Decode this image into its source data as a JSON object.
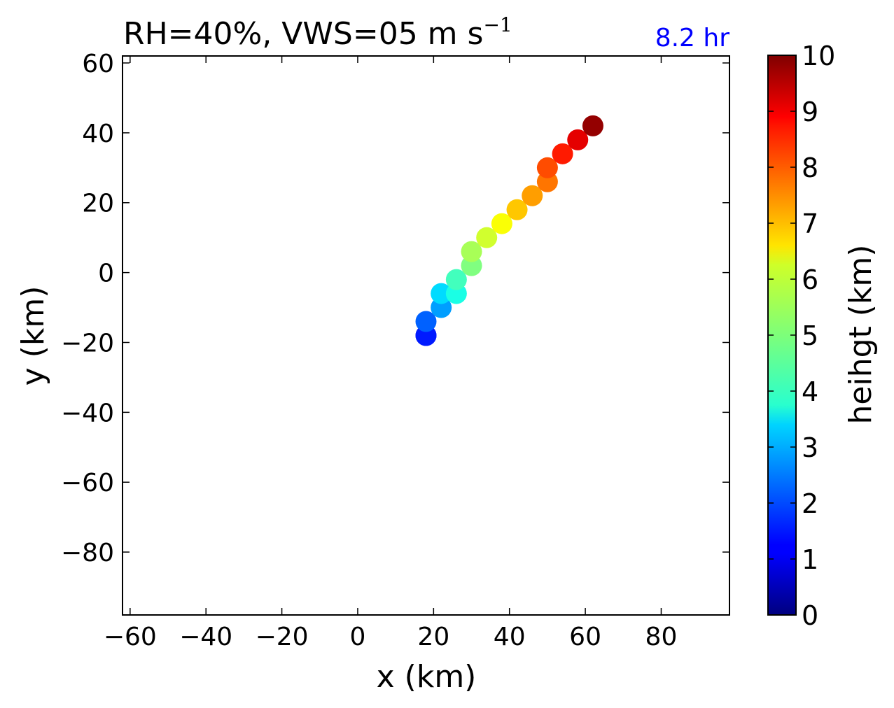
{
  "chart_data": {
    "type": "scatter",
    "title_main": "RH=40%, VWS=05 m s",
    "title_sup": "−1",
    "time_label": "8.2 hr",
    "xlabel": "x (km)",
    "ylabel": "y (km)",
    "xlim": [
      -62,
      98
    ],
    "ylim": [
      -98,
      62
    ],
    "xticks": [
      -60,
      -40,
      -20,
      0,
      20,
      40,
      60,
      80
    ],
    "yticks": [
      -80,
      -60,
      -40,
      -20,
      0,
      20,
      40,
      60
    ],
    "grid": false,
    "colorbar": {
      "label": "heihgt (km)",
      "range": [
        0,
        10
      ],
      "ticks": [
        0,
        1,
        2,
        3,
        4,
        5,
        6,
        7,
        8,
        9,
        10
      ],
      "colormap": "jet"
    },
    "points": [
      {
        "x": 18,
        "y": -18,
        "height": 1.0
      },
      {
        "x": 18,
        "y": -18,
        "height": 1.5
      },
      {
        "x": 18,
        "y": -14,
        "height": 2.2
      },
      {
        "x": 22,
        "y": -10,
        "height": 2.8
      },
      {
        "x": 22,
        "y": -6,
        "height": 3.4
      },
      {
        "x": 26,
        "y": -6,
        "height": 4.0
      },
      {
        "x": 26,
        "y": -2,
        "height": 4.4
      },
      {
        "x": 30,
        "y": 2,
        "height": 5.0
      },
      {
        "x": 30,
        "y": 6,
        "height": 5.4
      },
      {
        "x": 34,
        "y": 10,
        "height": 5.8
      },
      {
        "x": 38,
        "y": 14,
        "height": 6.2
      },
      {
        "x": 42,
        "y": 18,
        "height": 6.8
      },
      {
        "x": 46,
        "y": 22,
        "height": 7.2
      },
      {
        "x": 50,
        "y": 26,
        "height": 7.6
      },
      {
        "x": 50,
        "y": 30,
        "height": 8.0
      },
      {
        "x": 54,
        "y": 34,
        "height": 8.5
      },
      {
        "x": 58,
        "y": 38,
        "height": 9.0
      },
      {
        "x": 62,
        "y": 42,
        "height": 9.8
      }
    ]
  }
}
